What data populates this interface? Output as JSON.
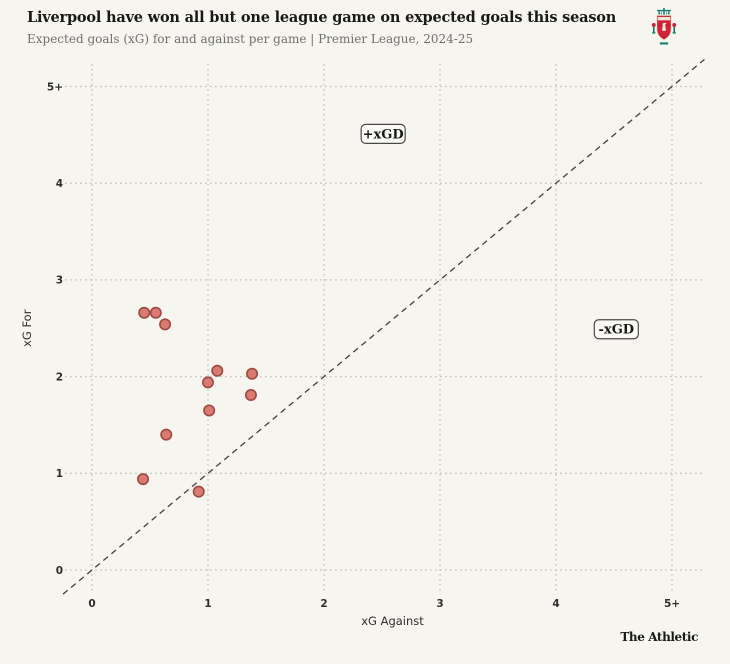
{
  "header": {
    "title": "Liverpool have won all but one league game on expected goals this season",
    "subtitle": "Expected goals (xG) for and against per game | Premier League, 2024-25",
    "logo": "liverpool-crest"
  },
  "footer": {
    "brand": "The Athletic"
  },
  "colors": {
    "background": "#f7f5f0",
    "title": "#191919",
    "subtitle": "#6f6f6f",
    "grid": "#c6c4bd",
    "diagonal": "#3f3f3f",
    "dot_fill": "#da7a70",
    "dot_stroke": "#9c4b43",
    "tick_text": "#2e2e2e",
    "annotation_box_border": "#4a4a4a",
    "annotation_box_fill": "#fbfaf6"
  },
  "chart_data": {
    "type": "scatter",
    "title": "Liverpool have won all but one league game on expected goals this season",
    "subtitle": "Expected goals (xG) for and against per game | Premier League, 2024-25",
    "xlabel": "xG Against",
    "ylabel": "xG For",
    "xlim": [
      -0.25,
      5.3
    ],
    "ylim": [
      -0.27,
      5.15
    ],
    "x_ticks": {
      "values": [
        0,
        1,
        2,
        3,
        4,
        5
      ],
      "labels": [
        "0",
        "1",
        "2",
        "3",
        "4",
        "5+"
      ]
    },
    "y_ticks": {
      "values": [
        0,
        1,
        2,
        3,
        4,
        5
      ],
      "labels": [
        "0",
        "1",
        "2",
        "3",
        "4",
        "5+"
      ]
    },
    "grid": "dotted",
    "legend": "none",
    "reference_line": {
      "equation": "y = x",
      "style": "dashed",
      "x_start": -0.25,
      "x_end": 5.28
    },
    "annotations": [
      {
        "label": "+xGD",
        "x": 2.51,
        "y": 4.51
      },
      {
        "label": "-xGD",
        "x": 4.52,
        "y": 2.49
      }
    ],
    "series_name": "Liverpool league games (xG Against vs xG For)",
    "points": [
      {
        "x": 0.45,
        "y": 2.66
      },
      {
        "x": 0.55,
        "y": 2.66
      },
      {
        "x": 0.63,
        "y": 2.54
      },
      {
        "x": 1.08,
        "y": 2.06
      },
      {
        "x": 1.0,
        "y": 1.94
      },
      {
        "x": 1.38,
        "y": 2.03
      },
      {
        "x": 1.37,
        "y": 1.81
      },
      {
        "x": 1.01,
        "y": 1.65
      },
      {
        "x": 0.64,
        "y": 1.4
      },
      {
        "x": 0.44,
        "y": 0.94
      },
      {
        "x": 0.92,
        "y": 0.81
      }
    ]
  }
}
